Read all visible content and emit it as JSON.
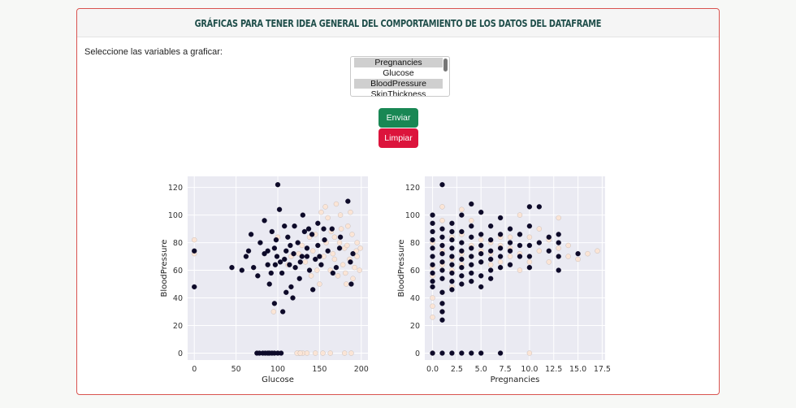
{
  "header": {
    "title": "GRÁFICAS PARA TENER IDEA GENERAL DEL COMPORTAMIENTO DE LOS DATOS DEL DATAFRAME"
  },
  "form": {
    "prompt": "Seleccione las variables a graficar:",
    "options": [
      {
        "label": "Pregnancies",
        "selected": true
      },
      {
        "label": "Glucose",
        "selected": false
      },
      {
        "label": "BloodPressure",
        "selected": true
      },
      {
        "label": "SkinThickness",
        "selected": false
      }
    ],
    "submit_label": "Enviar",
    "clear_label": "Limpiar"
  },
  "colors": {
    "accent_border": "#d9534f",
    "submit": "#198754",
    "clear": "#dc143c",
    "class0": "#0d0a29",
    "class1": "#fbe5d6",
    "plot_bg": "#eaeaf2"
  },
  "chart_data": [
    {
      "type": "scatter",
      "xlabel": "Glucose",
      "ylabel": "BloodPressure",
      "xlim": [
        -8,
        208
      ],
      "ylim": [
        -5,
        128
      ],
      "xticks": [
        0,
        50,
        100,
        150,
        200
      ],
      "yticks": [
        0,
        20,
        40,
        60,
        80,
        100,
        120
      ],
      "grid": true,
      "series": [
        {
          "points": [
            [
              0,
              74
            ],
            [
              0,
              48
            ],
            [
              75,
              0
            ],
            [
              78,
              0
            ],
            [
              82,
              0
            ],
            [
              85,
              0
            ],
            [
              88,
              0
            ],
            [
              90,
              0
            ],
            [
              93,
              0
            ],
            [
              96,
              0
            ],
            [
              100,
              0
            ],
            [
              104,
              0
            ],
            [
              57,
              60
            ],
            [
              65,
              74
            ],
            [
              71,
              62
            ],
            [
              79,
              80
            ],
            [
              84,
              72
            ],
            [
              88,
              64
            ],
            [
              90,
              50
            ],
            [
              93,
              88
            ],
            [
              96,
              76
            ],
            [
              99,
              70
            ],
            [
              100,
              122
            ],
            [
              103,
              66
            ],
            [
              105,
              58
            ],
            [
              108,
              92
            ],
            [
              110,
              74
            ],
            [
              112,
              84
            ],
            [
              114,
              64
            ],
            [
              116,
              48
            ],
            [
              119,
              72
            ],
            [
              121,
              62
            ],
            [
              124,
              80
            ],
            [
              126,
              54
            ],
            [
              129,
              70
            ],
            [
              132,
              88
            ],
            [
              135,
              76
            ],
            [
              138,
              60
            ],
            [
              141,
              86
            ],
            [
              145,
              68
            ],
            [
              148,
              78
            ],
            [
              152,
              64
            ],
            [
              156,
              82
            ],
            [
              160,
              74
            ],
            [
              165,
              90
            ],
            [
              170,
              62
            ],
            [
              175,
              84
            ],
            [
              184,
              110
            ],
            [
              187,
              66
            ],
            [
              188,
              50
            ],
            [
              190,
              72
            ],
            [
              148,
              94
            ],
            [
              142,
              46
            ],
            [
              118,
              40
            ],
            [
              106,
              30
            ],
            [
              96,
              36
            ],
            [
              68,
              86
            ],
            [
              76,
              56
            ],
            [
              84,
              96
            ],
            [
              102,
              104
            ],
            [
              92,
              58
            ],
            [
              98,
              82
            ],
            [
              108,
              68
            ],
            [
              115,
              78
            ],
            [
              127,
              66
            ],
            [
              137,
              90
            ],
            [
              150,
              70
            ],
            [
              166,
              58
            ],
            [
              174,
              76
            ],
            [
              62,
              70
            ],
            [
              110,
              44
            ],
            [
              130,
              100
            ],
            [
              45,
              62
            ],
            [
              120,
              92
            ],
            [
              88,
              74
            ],
            [
              97,
              64
            ],
            [
              135,
              70
            ],
            [
              155,
              90
            ]
          ]
        },
        {
          "points": [
            [
              0,
              72
            ],
            [
              0,
              82
            ],
            [
              126,
              0
            ],
            [
              130,
              0
            ],
            [
              135,
              0
            ],
            [
              145,
              0
            ],
            [
              154,
              0
            ],
            [
              163,
              0
            ],
            [
              180,
              0
            ],
            [
              188,
              0
            ],
            [
              123,
              0
            ],
            [
              127,
              0
            ],
            [
              160,
              98
            ],
            [
              168,
              84
            ],
            [
              175,
              100
            ],
            [
              180,
              76
            ],
            [
              184,
              92
            ],
            [
              189,
              86
            ],
            [
              192,
              62
            ],
            [
              195,
              70
            ],
            [
              198,
              60
            ],
            [
              178,
              64
            ],
            [
              172,
              56
            ],
            [
              166,
              72
            ],
            [
              158,
              80
            ],
            [
              152,
              102
            ],
            [
              147,
              60
            ],
            [
              142,
              74
            ],
            [
              138,
              84
            ],
            [
              133,
              66
            ],
            [
              129,
              78
            ],
            [
              125,
              72
            ],
            [
              150,
              50
            ],
            [
              163,
              60
            ],
            [
              170,
              108
            ],
            [
              186,
              68
            ],
            [
              190,
              54
            ],
            [
              195,
              80
            ],
            [
              182,
              50
            ],
            [
              176,
              90
            ],
            [
              155,
              70
            ],
            [
              145,
              86
            ],
            [
              116,
              70
            ],
            [
              112,
              64
            ],
            [
              100,
              84
            ],
            [
              95,
              30
            ],
            [
              140,
              56
            ],
            [
              168,
              68
            ],
            [
              183,
              78
            ],
            [
              194,
              74
            ],
            [
              157,
              106
            ],
            [
              174,
              80
            ],
            [
              181,
              58
            ],
            [
              187,
              102
            ],
            [
              199,
              76
            ],
            [
              164,
              88
            ]
          ]
        }
      ]
    },
    {
      "type": "scatter",
      "xlabel": "Pregnancies",
      "ylabel": "BloodPressure",
      "xlim": [
        -0.8,
        17.8
      ],
      "ylim": [
        -5,
        128
      ],
      "xticks": [
        0.0,
        2.5,
        5.0,
        7.5,
        10.0,
        12.5,
        15.0,
        17.5
      ],
      "yticks": [
        0,
        20,
        40,
        60,
        80,
        100,
        120
      ],
      "grid": true,
      "series": [
        {
          "points": [
            [
              0,
              0
            ],
            [
              1,
              0
            ],
            [
              2,
              0
            ],
            [
              3,
              0
            ],
            [
              4,
              0
            ],
            [
              5,
              0
            ],
            [
              7,
              0
            ],
            [
              0,
              100
            ],
            [
              0,
              94
            ],
            [
              0,
              88
            ],
            [
              0,
              82
            ],
            [
              0,
              76
            ],
            [
              0,
              70
            ],
            [
              0,
              64
            ],
            [
              0,
              58
            ],
            [
              0,
              52
            ],
            [
              0,
              48
            ],
            [
              1,
              122
            ],
            [
              1,
              90
            ],
            [
              1,
              84
            ],
            [
              1,
              78
            ],
            [
              1,
              72
            ],
            [
              1,
              66
            ],
            [
              1,
              60
            ],
            [
              1,
              54
            ],
            [
              1,
              44
            ],
            [
              1,
              36
            ],
            [
              1,
              30
            ],
            [
              1,
              24
            ],
            [
              2,
              94
            ],
            [
              2,
              88
            ],
            [
              2,
              82
            ],
            [
              2,
              76
            ],
            [
              2,
              70
            ],
            [
              2,
              64
            ],
            [
              2,
              58
            ],
            [
              2,
              52
            ],
            [
              2,
              46
            ],
            [
              3,
              100
            ],
            [
              3,
              88
            ],
            [
              3,
              80
            ],
            [
              3,
              74
            ],
            [
              3,
              68
            ],
            [
              3,
              62
            ],
            [
              3,
              56
            ],
            [
              3,
              50
            ],
            [
              4,
              108
            ],
            [
              4,
              92
            ],
            [
              4,
              84
            ],
            [
              4,
              76
            ],
            [
              4,
              70
            ],
            [
              4,
              64
            ],
            [
              4,
              58
            ],
            [
              4,
              52
            ],
            [
              5,
              102
            ],
            [
              5,
              86
            ],
            [
              5,
              78
            ],
            [
              5,
              72
            ],
            [
              5,
              66
            ],
            [
              5,
              56
            ],
            [
              5,
              48
            ],
            [
              6,
              92
            ],
            [
              6,
              82
            ],
            [
              6,
              74
            ],
            [
              6,
              68
            ],
            [
              6,
              60
            ],
            [
              6,
              54
            ],
            [
              7,
              98
            ],
            [
              7,
              86
            ],
            [
              7,
              76
            ],
            [
              7,
              70
            ],
            [
              7,
              62
            ],
            [
              8,
              90
            ],
            [
              8,
              80
            ],
            [
              8,
              74
            ],
            [
              8,
              64
            ],
            [
              9,
              86
            ],
            [
              9,
              78
            ],
            [
              9,
              70
            ],
            [
              10,
              106
            ],
            [
              10,
              92
            ],
            [
              10,
              78
            ],
            [
              10,
              70
            ],
            [
              10,
              62
            ],
            [
              11,
              106
            ],
            [
              11,
              80
            ],
            [
              12,
              84
            ],
            [
              12,
              74
            ],
            [
              13,
              86
            ],
            [
              13,
              80
            ],
            [
              13,
              70
            ],
            [
              13,
              60
            ],
            [
              15,
              72
            ]
          ]
        },
        {
          "points": [
            [
              0,
              80
            ],
            [
              0,
              62
            ],
            [
              0,
              56
            ],
            [
              0,
              40
            ],
            [
              0,
              34
            ],
            [
              0,
              26
            ],
            [
              1,
              64
            ],
            [
              1,
              74
            ],
            [
              1,
              96
            ],
            [
              1,
              30
            ],
            [
              2,
              68
            ],
            [
              2,
              84
            ],
            [
              2,
              60
            ],
            [
              2,
              48
            ],
            [
              3,
              72
            ],
            [
              3,
              86
            ],
            [
              3,
              64
            ],
            [
              4,
              78
            ],
            [
              4,
              96
            ],
            [
              4,
              70
            ],
            [
              5,
              82
            ],
            [
              5,
              66
            ],
            [
              5,
              74
            ],
            [
              6,
              80
            ],
            [
              6,
              64
            ],
            [
              6,
              72
            ],
            [
              7,
              78
            ],
            [
              7,
              66
            ],
            [
              7,
              84
            ],
            [
              8,
              84
            ],
            [
              8,
              70
            ],
            [
              8,
              76
            ],
            [
              9,
              72
            ],
            [
              9,
              86
            ],
            [
              9,
              60
            ],
            [
              10,
              0
            ],
            [
              10,
              84
            ],
            [
              10,
              66
            ],
            [
              11,
              74
            ],
            [
              11,
              90
            ],
            [
              12,
              82
            ],
            [
              12,
              66
            ],
            [
              13,
              76
            ],
            [
              13,
              98
            ],
            [
              14,
              78
            ],
            [
              14,
              70
            ],
            [
              15,
              68
            ],
            [
              16,
              72
            ],
            [
              17,
              74
            ],
            [
              0,
              0
            ],
            [
              1,
              106
            ],
            [
              3,
              104
            ],
            [
              9,
              100
            ]
          ]
        }
      ]
    }
  ]
}
